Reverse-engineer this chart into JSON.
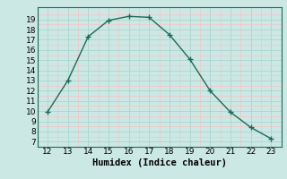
{
  "x": [
    12,
    13,
    14,
    15,
    16,
    17,
    18,
    19,
    20,
    21,
    22,
    23
  ],
  "y": [
    9.9,
    13.0,
    17.3,
    18.9,
    19.3,
    19.2,
    17.5,
    15.1,
    12.0,
    9.9,
    8.4,
    7.3
  ],
  "xlabel": "Humidex (Indice chaleur)",
  "xlim": [
    11.5,
    23.5
  ],
  "ylim": [
    6.5,
    20.2
  ],
  "xticks": [
    12,
    13,
    14,
    15,
    16,
    17,
    18,
    19,
    20,
    21,
    22,
    23
  ],
  "yticks": [
    7,
    8,
    9,
    10,
    11,
    12,
    13,
    14,
    15,
    16,
    17,
    18,
    19
  ],
  "line_color": "#1a6b5a",
  "bg_color": "#cce8e4",
  "grid_major_color": "#aad4ce",
  "grid_minor_color": "#f0c8ca",
  "tick_fontsize": 6.5,
  "label_fontsize": 7.5
}
